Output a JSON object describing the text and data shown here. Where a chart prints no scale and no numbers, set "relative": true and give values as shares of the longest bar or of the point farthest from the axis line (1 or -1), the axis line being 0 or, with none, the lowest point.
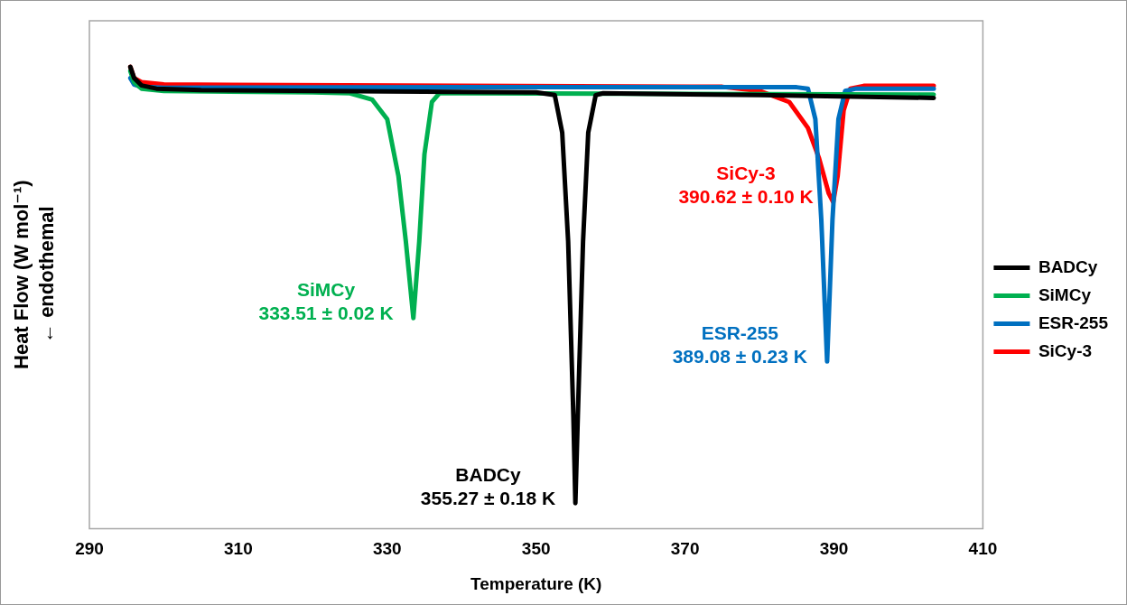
{
  "chart_data": {
    "type": "line",
    "relative": true,
    "xlabel": "Temperature (K)",
    "ylabel": "Heat Flow (W mol⁻¹)\n← endothemal",
    "xlim": [
      290,
      410
    ],
    "xticks": [
      290,
      310,
      330,
      350,
      370,
      390,
      410
    ],
    "legend": "right",
    "grid": false,
    "marker": "none",
    "line_style": "solid",
    "series": [
      {
        "name": "BADCy",
        "color": "#000000",
        "x": [
          295.5,
          296,
          297,
          299,
          305,
          330,
          350,
          352.5,
          353.5,
          354.3,
          355,
          355.27,
          355.6,
          356.3,
          357,
          358,
          359,
          380,
          403.4
        ],
        "values": [
          1,
          0.976,
          0.96,
          0.953,
          0.95,
          0.947,
          0.945,
          0.939,
          0.858,
          0.622,
          0.244,
          0.055,
          0.244,
          0.622,
          0.858,
          0.939,
          0.943,
          0.939,
          0.933
        ]
      },
      {
        "name": "SiMCy",
        "color": "#00b050",
        "x": [
          295.5,
          296,
          297,
          300,
          320,
          325,
          328,
          330,
          331.5,
          332.5,
          333.51,
          334.3,
          335,
          336,
          337,
          360,
          403.4
        ],
        "values": [
          0.991,
          0.967,
          0.953,
          0.948,
          0.945,
          0.943,
          0.929,
          0.887,
          0.764,
          0.622,
          0.456,
          0.622,
          0.811,
          0.924,
          0.943,
          0.942,
          0.94
        ]
      },
      {
        "name": "ESR-255",
        "color": "#0070c0",
        "x": [
          295.5,
          296,
          297,
          300,
          340,
          385,
          386.5,
          387.5,
          388.3,
          389.08,
          389.8,
          390.6,
          391.5,
          393,
          403.4
        ],
        "values": [
          0.976,
          0.962,
          0.957,
          0.955,
          0.956,
          0.956,
          0.953,
          0.887,
          0.669,
          0.362,
          0.669,
          0.887,
          0.948,
          0.953,
          0.953
        ]
      },
      {
        "name": "SiCy-3",
        "color": "#ff0000",
        "x": [
          295.5,
          296,
          297,
          300,
          340,
          375,
          380,
          384,
          386.5,
          388,
          389.3,
          389.9,
          390.5,
          391.3,
          392.2,
          394,
          403.4
        ],
        "values": [
          1,
          0.976,
          0.967,
          0.962,
          0.959,
          0.957,
          0.948,
          0.924,
          0.868,
          0.802,
          0.726,
          0.707,
          0.764,
          0.906,
          0.953,
          0.959,
          0.959
        ]
      }
    ],
    "annotations": [
      {
        "text": "BADCy\n355.27 ± 0.18 K",
        "x": 355.27,
        "y": 0.055
      },
      {
        "text": "SiMCy\n333.51 ± 0.02 K",
        "x": 333.51,
        "y": 0.456
      },
      {
        "text": "ESR-255\n389.08 ± 0.23 K",
        "x": 389.08,
        "y": 0.362
      },
      {
        "text": "SiCy-3\n390.62 ± 0.10 K",
        "x": 389.9,
        "y": 0.707
      }
    ]
  }
}
